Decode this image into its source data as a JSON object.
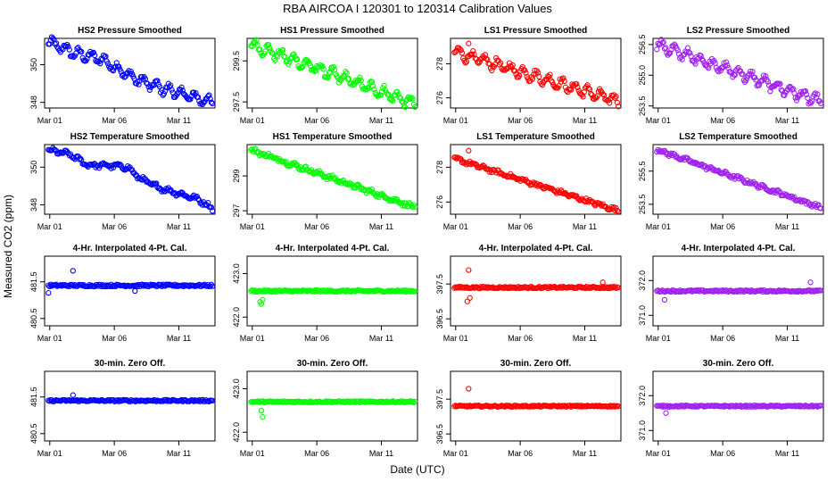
{
  "figure": {
    "title": "RBA   AIRCOA I   120301 to 120314   Calibration Values",
    "xlabel": "Date (UTC)",
    "ylabel": "Measured CO2 (ppm)"
  },
  "colors": {
    "blue": "#0000ff",
    "green": "#00ff00",
    "red": "#ff0000",
    "purple": "#a020f0"
  },
  "chart_data": [
    {
      "type": "scatter",
      "row": 0,
      "col": 0,
      "title": "HS2 Pressure Smoothed",
      "color": "#0000ff",
      "x_range": [
        0.6,
        13.8
      ],
      "x_ticks": [
        {
          "value": 1,
          "label": "Mar 01"
        },
        {
          "value": 6,
          "label": "Mar 06"
        },
        {
          "value": 11,
          "label": "Mar 11"
        }
      ],
      "ylim": [
        347.7,
        351.4
      ],
      "y_ticks": [
        {
          "value": 348,
          "label": "348"
        },
        {
          "value": 350,
          "label": "350"
        }
      ],
      "x": [
        0.9,
        3.0,
        5.0,
        7.5,
        9.0,
        11.0,
        13.6
      ],
      "y": [
        351.2,
        350.6,
        350.3,
        349.3,
        348.9,
        348.5,
        348.0
      ],
      "jitter": 0.15,
      "osc": 0.25,
      "outliers": []
    },
    {
      "type": "scatter",
      "row": 0,
      "col": 1,
      "title": "HS1 Pressure Smoothed",
      "color": "#00ff00",
      "x_range": [
        0.6,
        13.8
      ],
      "x_ticks": [
        {
          "value": 1,
          "label": "Mar 01"
        },
        {
          "value": 6,
          "label": "Mar 06"
        },
        {
          "value": 11,
          "label": "Mar 11"
        }
      ],
      "ylim": [
        297.2,
        300.6
      ],
      "y_ticks": [
        {
          "value": 297.5,
          "label": "297.5"
        },
        {
          "value": 299.5,
          "label": "299.5"
        }
      ],
      "x": [
        0.9,
        13.6
      ],
      "y": [
        300.3,
        297.4
      ],
      "jitter": 0.15,
      "osc": 0.25,
      "outliers": []
    },
    {
      "type": "scatter",
      "row": 0,
      "col": 2,
      "title": "LS1 Pressure Smoothed",
      "color": "#ff0000",
      "x_range": [
        0.6,
        13.8
      ],
      "x_ticks": [
        {
          "value": 1,
          "label": "Mar 01"
        },
        {
          "value": 6,
          "label": "Mar 06"
        },
        {
          "value": 11,
          "label": "Mar 11"
        }
      ],
      "ylim": [
        275.4,
        279.5
      ],
      "y_ticks": [
        {
          "value": 276,
          "label": "276"
        },
        {
          "value": 278,
          "label": "278"
        }
      ],
      "x": [
        0.9,
        13.6
      ],
      "y": [
        278.7,
        275.8
      ],
      "jitter": 0.15,
      "osc": 0.3,
      "outliers": [
        {
          "x": 2.0,
          "y": 279.2
        }
      ]
    },
    {
      "type": "scatter",
      "row": 0,
      "col": 3,
      "title": "LS2 Pressure Smoothed",
      "color": "#a020f0",
      "x_range": [
        0.6,
        13.8
      ],
      "x_ticks": [
        {
          "value": 1,
          "label": "Mar 01"
        },
        {
          "value": 6,
          "label": "Mar 06"
        },
        {
          "value": 11,
          "label": "Mar 11"
        }
      ],
      "ylim": [
        253.4,
        256.8
      ],
      "y_ticks": [
        {
          "value": 253.5,
          "label": "253.5"
        },
        {
          "value": 255.0,
          "label": "255.0"
        },
        {
          "value": 256.5,
          "label": "256.5"
        }
      ],
      "x": [
        0.9,
        13.6
      ],
      "y": [
        256.5,
        253.7
      ],
      "jitter": 0.15,
      "osc": 0.25,
      "outliers": []
    },
    {
      "type": "scatter",
      "row": 1,
      "col": 0,
      "title": "HS2 Temperature Smoothed",
      "color": "#0000ff",
      "x_range": [
        0.6,
        13.8
      ],
      "x_ticks": [
        {
          "value": 1,
          "label": "Mar 01"
        },
        {
          "value": 6,
          "label": "Mar 06"
        },
        {
          "value": 11,
          "label": "Mar 11"
        }
      ],
      "ylim": [
        347.5,
        351.2
      ],
      "y_ticks": [
        {
          "value": 348,
          "label": "348"
        },
        {
          "value": 350,
          "label": "350"
        }
      ],
      "x": [
        0.9,
        2.5,
        4.0,
        5.5,
        7.0,
        8.0,
        9.5,
        11.0,
        12.5,
        13.6
      ],
      "y": [
        350.9,
        350.7,
        350.1,
        350.1,
        350.0,
        349.4,
        348.9,
        348.6,
        348.3,
        347.8
      ],
      "jitter": 0.1,
      "osc": 0.08,
      "outliers": []
    },
    {
      "type": "scatter",
      "row": 1,
      "col": 1,
      "title": "HS1 Temperature Smoothed",
      "color": "#00ff00",
      "x_range": [
        0.6,
        13.8
      ],
      "x_ticks": [
        {
          "value": 1,
          "label": "Mar 01"
        },
        {
          "value": 6,
          "label": "Mar 06"
        },
        {
          "value": 11,
          "label": "Mar 11"
        }
      ],
      "ylim": [
        296.8,
        300.8
      ],
      "y_ticks": [
        {
          "value": 297,
          "label": "297"
        },
        {
          "value": 299,
          "label": "299"
        }
      ],
      "x": [
        0.9,
        13.6
      ],
      "y": [
        300.5,
        297.2
      ],
      "jitter": 0.12,
      "osc": 0.06,
      "outliers": []
    },
    {
      "type": "scatter",
      "row": 1,
      "col": 2,
      "title": "LS1 Temperature Smoothed",
      "color": "#ff0000",
      "x_range": [
        0.6,
        13.8
      ],
      "x_ticks": [
        {
          "value": 1,
          "label": "Mar 01"
        },
        {
          "value": 6,
          "label": "Mar 06"
        },
        {
          "value": 11,
          "label": "Mar 11"
        }
      ],
      "ylim": [
        275.3,
        279.3
      ],
      "y_ticks": [
        {
          "value": 276,
          "label": "276"
        },
        {
          "value": 278,
          "label": "278"
        }
      ],
      "x": [
        0.9,
        13.6
      ],
      "y": [
        278.5,
        275.5
      ],
      "jitter": 0.1,
      "osc": 0.05,
      "outliers": [
        {
          "x": 2.0,
          "y": 278.95
        }
      ]
    },
    {
      "type": "scatter",
      "row": 1,
      "col": 3,
      "title": "LS2 Temperature Smoothed",
      "color": "#a020f0",
      "x_range": [
        0.6,
        13.8
      ],
      "x_ticks": [
        {
          "value": 1,
          "label": "Mar 01"
        },
        {
          "value": 6,
          "label": "Mar 06"
        },
        {
          "value": 11,
          "label": "Mar 11"
        }
      ],
      "ylim": [
        252.9,
        257.1
      ],
      "y_ticks": [
        {
          "value": 253.5,
          "label": "253.5"
        },
        {
          "value": 255.5,
          "label": "255.5"
        }
      ],
      "x": [
        0.9,
        13.6
      ],
      "y": [
        256.8,
        253.3
      ],
      "jitter": 0.1,
      "osc": 0.05,
      "outliers": []
    },
    {
      "type": "scatter",
      "row": 2,
      "col": 0,
      "title": "4-Hr. Interpolated 4-Pt. Cal.",
      "color": "#0000ff",
      "x_range": [
        0.6,
        13.8
      ],
      "x_ticks": [
        {
          "value": 1,
          "label": "Mar 01"
        },
        {
          "value": 6,
          "label": "Mar 06"
        },
        {
          "value": 11,
          "label": "Mar 11"
        }
      ],
      "ylim": [
        480.3,
        482.2
      ],
      "y_ticks": [
        {
          "value": 480.5,
          "label": "480.5"
        },
        {
          "value": 481.5,
          "label": "481.5"
        }
      ],
      "x": [
        0.9,
        13.6
      ],
      "y": [
        481.4,
        481.4
      ],
      "jitter": 0.06,
      "osc": 0.0,
      "outliers": [
        {
          "x": 2.8,
          "y": 481.8
        },
        {
          "x": 0.9,
          "y": 481.2
        },
        {
          "x": 7.6,
          "y": 481.25
        }
      ]
    },
    {
      "type": "scatter",
      "row": 2,
      "col": 1,
      "title": "4-Hr. Interpolated 4-Pt. Cal.",
      "color": "#00ff00",
      "x_range": [
        0.6,
        13.8
      ],
      "x_ticks": [
        {
          "value": 1,
          "label": "Mar 01"
        },
        {
          "value": 6,
          "label": "Mar 06"
        },
        {
          "value": 11,
          "label": "Mar 11"
        }
      ],
      "ylim": [
        421.8,
        423.4
      ],
      "y_ticks": [
        {
          "value": 422.0,
          "label": "422.0"
        },
        {
          "value": 423.0,
          "label": "423.0"
        }
      ],
      "x": [
        0.9,
        13.6
      ],
      "y": [
        422.6,
        422.6
      ],
      "jitter": 0.05,
      "osc": 0.0,
      "outliers": [
        {
          "x": 1.7,
          "y": 422.3
        },
        {
          "x": 1.8,
          "y": 422.4
        },
        {
          "x": 1.6,
          "y": 422.35
        }
      ]
    },
    {
      "type": "scatter",
      "row": 2,
      "col": 2,
      "title": "4-Hr. Interpolated 4-Pt. Cal.",
      "color": "#ff0000",
      "x_range": [
        0.6,
        13.8
      ],
      "x_ticks": [
        {
          "value": 1,
          "label": "Mar 01"
        },
        {
          "value": 6,
          "label": "Mar 06"
        },
        {
          "value": 11,
          "label": "Mar 11"
        }
      ],
      "ylim": [
        396.3,
        398.3
      ],
      "y_ticks": [
        {
          "value": 396.5,
          "label": "396.5"
        },
        {
          "value": 397.5,
          "label": "397.5"
        }
      ],
      "x": [
        0.9,
        13.6
      ],
      "y": [
        397.4,
        397.4
      ],
      "jitter": 0.05,
      "osc": 0.0,
      "outliers": [
        {
          "x": 2.0,
          "y": 397.9
        },
        {
          "x": 1.9,
          "y": 397.0
        },
        {
          "x": 2.1,
          "y": 397.1
        },
        {
          "x": 12.4,
          "y": 397.55
        }
      ]
    },
    {
      "type": "scatter",
      "row": 2,
      "col": 3,
      "title": "4-Hr. Interpolated 4-Pt. Cal.",
      "color": "#a020f0",
      "x_range": [
        0.6,
        13.8
      ],
      "x_ticks": [
        {
          "value": 1,
          "label": "Mar 01"
        },
        {
          "value": 6,
          "label": "Mar 06"
        },
        {
          "value": 11,
          "label": "Mar 11"
        }
      ],
      "ylim": [
        370.7,
        372.7
      ],
      "y_ticks": [
        {
          "value": 371.0,
          "label": "371.0"
        },
        {
          "value": 372.0,
          "label": "372.0"
        }
      ],
      "x": [
        0.9,
        13.6
      ],
      "y": [
        371.7,
        371.7
      ],
      "jitter": 0.05,
      "osc": 0.0,
      "outliers": [
        {
          "x": 1.5,
          "y": 371.45
        },
        {
          "x": 12.8,
          "y": 371.95
        }
      ]
    },
    {
      "type": "scatter",
      "row": 3,
      "col": 0,
      "title": "30-min. Zero Off.",
      "color": "#0000ff",
      "x_range": [
        0.6,
        13.8
      ],
      "x_ticks": [
        {
          "value": 1,
          "label": "Mar 01"
        },
        {
          "value": 6,
          "label": "Mar 06"
        },
        {
          "value": 11,
          "label": "Mar 11"
        }
      ],
      "ylim": [
        480.3,
        482.2
      ],
      "y_ticks": [
        {
          "value": 480.5,
          "label": "480.5"
        },
        {
          "value": 481.5,
          "label": "481.5"
        }
      ],
      "x": [
        0.9,
        13.6
      ],
      "y": [
        481.4,
        481.4
      ],
      "jitter": 0.05,
      "osc": 0.0,
      "outliers": [
        {
          "x": 2.8,
          "y": 481.55
        }
      ]
    },
    {
      "type": "scatter",
      "row": 3,
      "col": 1,
      "title": "30-min. Zero Off.",
      "color": "#00ff00",
      "x_range": [
        0.6,
        13.8
      ],
      "x_ticks": [
        {
          "value": 1,
          "label": "Mar 01"
        },
        {
          "value": 6,
          "label": "Mar 06"
        },
        {
          "value": 11,
          "label": "Mar 11"
        }
      ],
      "ylim": [
        421.8,
        423.4
      ],
      "y_ticks": [
        {
          "value": 422.0,
          "label": "422.0"
        },
        {
          "value": 423.0,
          "label": "423.0"
        }
      ],
      "x": [
        0.9,
        13.6
      ],
      "y": [
        422.7,
        422.7
      ],
      "jitter": 0.04,
      "osc": 0.0,
      "outliers": [
        {
          "x": 1.8,
          "y": 422.35
        },
        {
          "x": 1.7,
          "y": 422.5
        }
      ]
    },
    {
      "type": "scatter",
      "row": 3,
      "col": 2,
      "title": "30-min. Zero Off.",
      "color": "#ff0000",
      "x_range": [
        0.6,
        13.8
      ],
      "x_ticks": [
        {
          "value": 1,
          "label": "Mar 01"
        },
        {
          "value": 6,
          "label": "Mar 06"
        },
        {
          "value": 11,
          "label": "Mar 11"
        }
      ],
      "ylim": [
        396.3,
        398.3
      ],
      "y_ticks": [
        {
          "value": 396.5,
          "label": "396.5"
        },
        {
          "value": 397.5,
          "label": "397.5"
        }
      ],
      "x": [
        0.9,
        13.6
      ],
      "y": [
        397.3,
        397.3
      ],
      "jitter": 0.04,
      "osc": 0.0,
      "outliers": [
        {
          "x": 2.0,
          "y": 397.8
        }
      ]
    },
    {
      "type": "scatter",
      "row": 3,
      "col": 3,
      "title": "30-min. Zero Off.",
      "color": "#a020f0",
      "x_range": [
        0.6,
        13.8
      ],
      "x_ticks": [
        {
          "value": 1,
          "label": "Mar 01"
        },
        {
          "value": 6,
          "label": "Mar 06"
        },
        {
          "value": 11,
          "label": "Mar 11"
        }
      ],
      "ylim": [
        370.7,
        372.7
      ],
      "y_ticks": [
        {
          "value": 371.0,
          "label": "371.0"
        },
        {
          "value": 372.0,
          "label": "372.0"
        }
      ],
      "x": [
        0.9,
        13.6
      ],
      "y": [
        371.7,
        371.7
      ],
      "jitter": 0.04,
      "osc": 0.0,
      "outliers": [
        {
          "x": 1.6,
          "y": 371.5
        }
      ]
    }
  ]
}
